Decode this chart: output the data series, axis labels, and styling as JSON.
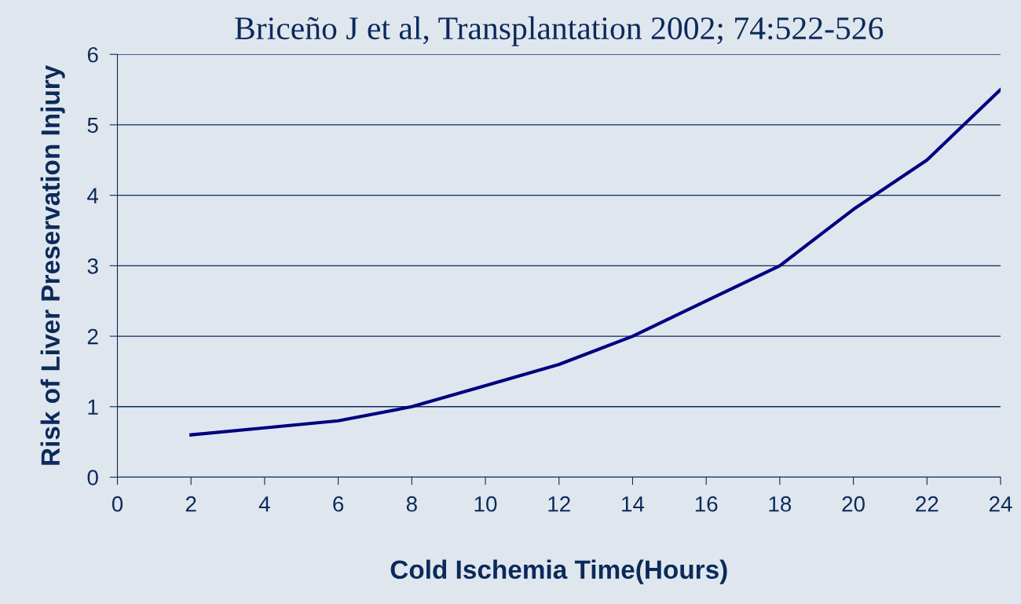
{
  "chart_data": {
    "type": "line",
    "title": "Briceño J et al, Transplantation 2002; 74:522-526",
    "xlabel": "Cold Ischemia Time(Hours)",
    "ylabel": "Risk of Liver Preservation Injury",
    "x": [
      2,
      4,
      6,
      8,
      10,
      12,
      14,
      16,
      18,
      20,
      22,
      24
    ],
    "series": [
      {
        "color": "#000080",
        "values": [
          0.6,
          0.7,
          0.8,
          1.0,
          1.3,
          1.6,
          2.0,
          2.5,
          3.0,
          3.8,
          4.5,
          5.5
        ]
      }
    ],
    "xlim": [
      0,
      24
    ],
    "xticks": [
      0,
      2,
      4,
      6,
      8,
      10,
      12,
      14,
      16,
      18,
      20,
      22,
      24
    ],
    "ylim": [
      0,
      6
    ],
    "yticks": [
      0,
      1,
      2,
      3,
      4,
      5,
      6
    ],
    "grid": "y",
    "legend": false,
    "marker": "none",
    "line_style": "solid"
  }
}
